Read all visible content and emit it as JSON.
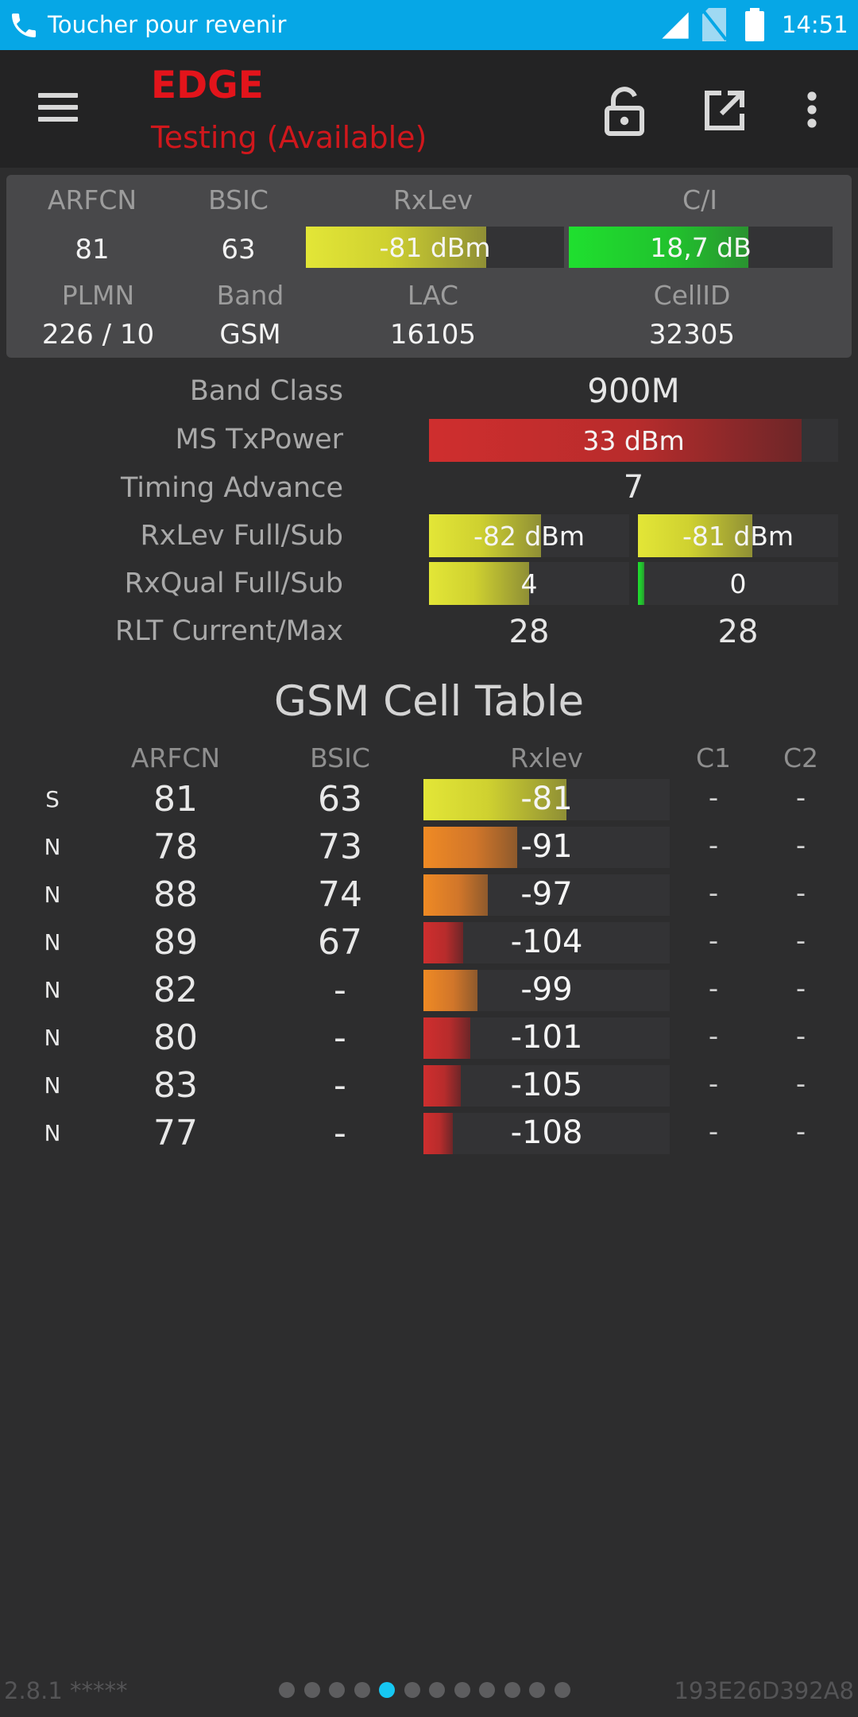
{
  "status_bar": {
    "call_text": "Toucher pour revenir",
    "time": "14:51"
  },
  "toolbar": {
    "tech": "EDGE",
    "state": "Testing (Available)"
  },
  "card": {
    "labels": {
      "arfcn": "ARFCN",
      "bsic": "BSIC",
      "rxlev": "RxLev",
      "ci": "C/I",
      "plmn": "PLMN",
      "band": "Band",
      "lac": "LAC",
      "cellid": "CellID"
    },
    "arfcn": "81",
    "bsic": "63",
    "rxlev": {
      "text": "-81 dBm",
      "level": 0.7
    },
    "ci": {
      "text": "18,7 dB",
      "level": 0.68
    },
    "plmn": "226 / 10",
    "band": "GSM",
    "lac": "16105",
    "cellid": "32305"
  },
  "details": {
    "band_class": {
      "label": "Band Class",
      "value": "900M"
    },
    "ms_txpower": {
      "label": "MS TxPower",
      "text": "33 dBm",
      "level": 0.91
    },
    "timing_advance": {
      "label": "Timing Advance",
      "value": "7"
    },
    "rxlev_full_sub": {
      "label": "RxLev Full/Sub",
      "full": {
        "text": "-82 dBm",
        "level": 0.56
      },
      "sub": {
        "text": "-81 dBm",
        "level": 0.57
      }
    },
    "rxqual_full_sub": {
      "label": "RxQual Full/Sub",
      "full": {
        "text": "4",
        "level": 0.5
      },
      "sub": {
        "text": "0",
        "level": 0.03
      }
    },
    "rlt_current_max": {
      "label": "RLT Current/Max",
      "current": "28",
      "max": "28"
    }
  },
  "cell_table": {
    "title": "GSM Cell Table",
    "headers": {
      "arfcn": "ARFCN",
      "bsic": "BSIC",
      "rxlev": "Rxlev",
      "c1": "C1",
      "c2": "C2"
    },
    "rows": [
      {
        "type": "S",
        "arfcn": "81",
        "bsic": "63",
        "rxlev": "-81",
        "level": 0.58,
        "color": "yellow",
        "c1": "-",
        "c2": "-"
      },
      {
        "type": "N",
        "arfcn": "78",
        "bsic": "73",
        "rxlev": "-91",
        "level": 0.38,
        "color": "orange",
        "c1": "-",
        "c2": "-"
      },
      {
        "type": "N",
        "arfcn": "88",
        "bsic": "74",
        "rxlev": "-97",
        "level": 0.26,
        "color": "orange",
        "c1": "-",
        "c2": "-"
      },
      {
        "type": "N",
        "arfcn": "89",
        "bsic": "67",
        "rxlev": "-104",
        "level": 0.16,
        "color": "red",
        "c1": "-",
        "c2": "-"
      },
      {
        "type": "N",
        "arfcn": "82",
        "bsic": "-",
        "rxlev": "-99",
        "level": 0.22,
        "color": "orange",
        "c1": "-",
        "c2": "-"
      },
      {
        "type": "N",
        "arfcn": "80",
        "bsic": "-",
        "rxlev": "-101",
        "level": 0.19,
        "color": "red",
        "c1": "-",
        "c2": "-"
      },
      {
        "type": "N",
        "arfcn": "83",
        "bsic": "-",
        "rxlev": "-105",
        "level": 0.15,
        "color": "red",
        "c1": "-",
        "c2": "-"
      },
      {
        "type": "N",
        "arfcn": "77",
        "bsic": "-",
        "rxlev": "-108",
        "level": 0.12,
        "color": "red",
        "c1": "-",
        "c2": "-"
      }
    ]
  },
  "footer": {
    "version": "2.8.1 *****",
    "device_id": "193E26D392A8",
    "page_count": 12,
    "active_page": 5
  },
  "icons": {
    "call": "phone-icon",
    "signal": "signal-icon",
    "sim": "no-sim-icon",
    "battery": "battery-icon",
    "menu": "hamburger-icon",
    "lock": "lock-open-icon",
    "export": "open-external-icon",
    "overflow": "more-vert-icon"
  },
  "colors": {
    "status_bar": "#06a7e6",
    "tech_red": "#e3141b",
    "state_red": "#d0171c",
    "active_dot": "#16c7f2"
  }
}
